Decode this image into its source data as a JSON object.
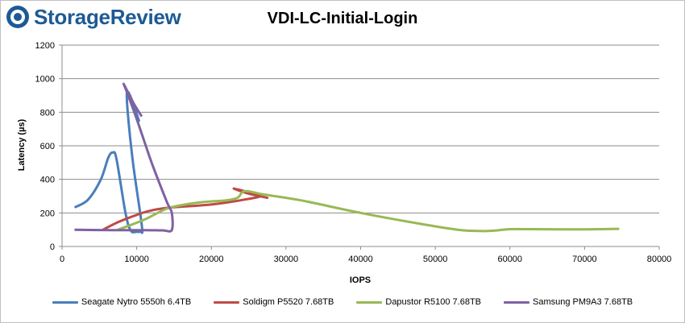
{
  "brand": {
    "name": "StorageReview",
    "color": "#1d5a95",
    "icon": "storagereview-logo-icon"
  },
  "chart_data": {
    "type": "line",
    "title": "VDI-LC-Initial-Login",
    "xlabel": "IOPS",
    "ylabel": "Latency (µs)",
    "xlim": [
      0,
      80000
    ],
    "ylim": [
      0,
      1200
    ],
    "xticks": [
      "0",
      "10000",
      "20000",
      "30000",
      "40000",
      "50000",
      "60000",
      "70000",
      "80000"
    ],
    "yticks": [
      "0",
      "200",
      "400",
      "600",
      "800",
      "1000",
      "1200"
    ],
    "grid": "horizontal",
    "legend_position": "bottom",
    "series": [
      {
        "name": "Seagate Nytro 5550h 6.4TB",
        "color": "#4a7ebb",
        "points": [
          [
            1800,
            235
          ],
          [
            3500,
            280
          ],
          [
            5200,
            400
          ],
          [
            6200,
            530
          ],
          [
            6800,
            560
          ],
          [
            7300,
            520
          ],
          [
            8500,
            200
          ],
          [
            9200,
            95
          ],
          [
            10000,
            88
          ],
          [
            10500,
            90
          ],
          [
            10700,
            120
          ],
          [
            9500,
            500
          ],
          [
            8800,
            800
          ],
          [
            8700,
            920
          ],
          [
            9300,
            880
          ],
          [
            10300,
            750
          ]
        ]
      },
      {
        "name": "Soldigm P5520 7.68TB",
        "color": "#be4b48",
        "points": [
          [
            5500,
            100
          ],
          [
            7500,
            145
          ],
          [
            9500,
            180
          ],
          [
            11500,
            210
          ],
          [
            14000,
            230
          ],
          [
            17000,
            240
          ],
          [
            20000,
            250
          ],
          [
            22500,
            265
          ],
          [
            24500,
            280
          ],
          [
            26500,
            300
          ],
          [
            24800,
            325
          ],
          [
            23000,
            345
          ],
          [
            25000,
            315
          ],
          [
            27500,
            290
          ]
        ]
      },
      {
        "name": "Dapustor R5100 7.68TB",
        "color": "#98b954",
        "points": [
          [
            7500,
            100
          ],
          [
            11000,
            160
          ],
          [
            14000,
            225
          ],
          [
            16500,
            250
          ],
          [
            19000,
            265
          ],
          [
            22000,
            275
          ],
          [
            23500,
            290
          ],
          [
            24500,
            330
          ],
          [
            27000,
            310
          ],
          [
            32000,
            275
          ],
          [
            40000,
            200
          ],
          [
            48000,
            135
          ],
          [
            53000,
            100
          ],
          [
            56000,
            92
          ],
          [
            58000,
            95
          ],
          [
            60000,
            103
          ],
          [
            63000,
            103
          ],
          [
            67000,
            102
          ],
          [
            70000,
            102
          ],
          [
            72000,
            103
          ],
          [
            74500,
            105
          ]
        ]
      },
      {
        "name": "Samsung PM9A3 7.68TB",
        "color": "#7e62a1",
        "points": [
          [
            1800,
            100
          ],
          [
            5000,
            98
          ],
          [
            8000,
            97
          ],
          [
            11000,
            97
          ],
          [
            13500,
            96
          ],
          [
            14700,
            98
          ],
          [
            14700,
            200
          ],
          [
            14000,
            270
          ],
          [
            12000,
            500
          ],
          [
            10000,
            760
          ],
          [
            8600,
            930
          ],
          [
            8300,
            965
          ],
          [
            9500,
            860
          ],
          [
            10600,
            780
          ]
        ]
      }
    ]
  }
}
